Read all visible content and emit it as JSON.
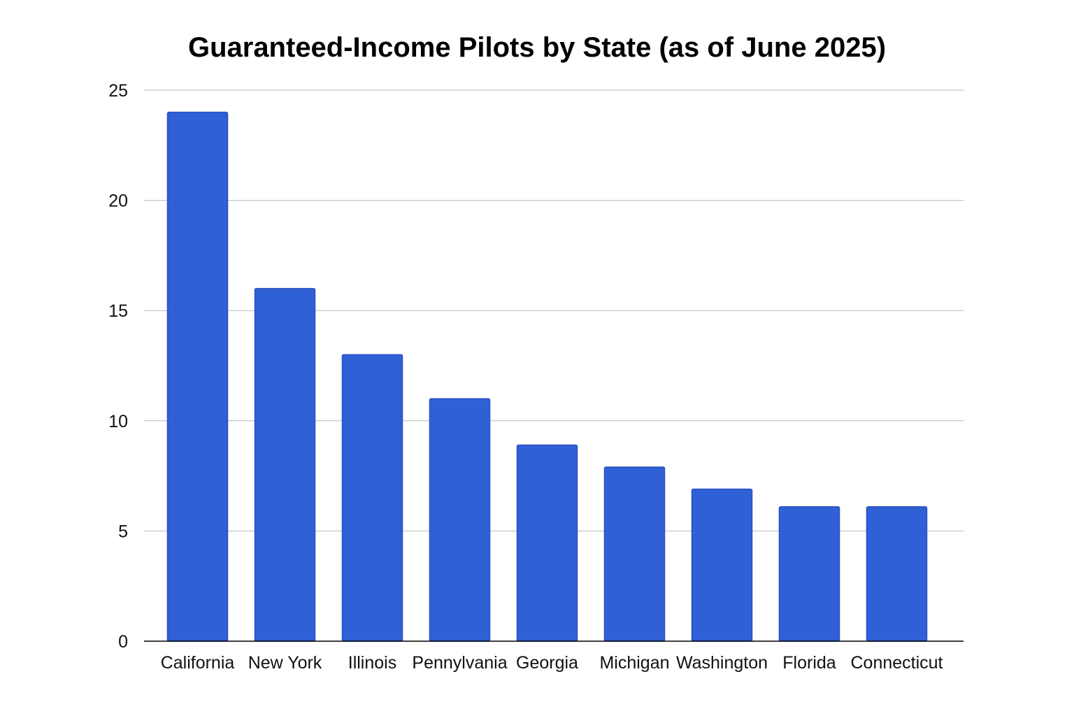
{
  "chart_data": {
    "type": "bar",
    "title": "Guaranteed-Income Pilots by State (as of June 2025)",
    "xlabel": "",
    "ylabel": "",
    "categories": [
      "California",
      "New York",
      "Illinois",
      "Pennylvania",
      "Georgia",
      "Michigan",
      "Washington",
      "Florida",
      "Connecticut"
    ],
    "values": [
      24,
      16,
      13,
      11,
      8.9,
      7.9,
      6.9,
      6.1,
      6.1
    ],
    "ylim": [
      0,
      25
    ],
    "yticks": [
      0,
      5,
      10,
      15,
      20,
      25
    ],
    "grid": "horizontal",
    "legend": "none",
    "bar_color": "#3060d5"
  }
}
